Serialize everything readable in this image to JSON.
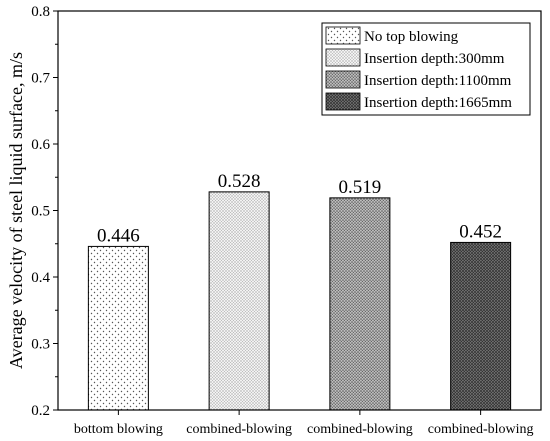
{
  "chart_data": {
    "type": "bar",
    "title": "",
    "xlabel": "",
    "ylabel": "Average velocity of steel liquid surface, m/s",
    "ylim": [
      0.2,
      0.8
    ],
    "yticks": [
      "0.2",
      "0.3",
      "0.4",
      "0.5",
      "0.6",
      "0.7",
      "0.8"
    ],
    "categories": [
      "bottom blowing",
      "combined-blowing",
      "combined-blowing",
      "combined-blowing"
    ],
    "values": [
      0.446,
      0.528,
      0.519,
      0.452
    ],
    "value_labels": [
      "0.446",
      "0.528",
      "0.519",
      "0.452"
    ],
    "series": [
      {
        "name": "No top blowing",
        "pattern": "sparse-dots",
        "value": 0.446
      },
      {
        "name": "Insertion depth:300mm",
        "pattern": "light-dots",
        "value": 0.528
      },
      {
        "name": "Insertion depth:1100mm",
        "pattern": "medium-dots",
        "value": 0.519
      },
      {
        "name": "Insertion depth:1665mm",
        "pattern": "dense-dots",
        "value": 0.452
      }
    ],
    "legend_position": "top-right",
    "grid": false
  }
}
